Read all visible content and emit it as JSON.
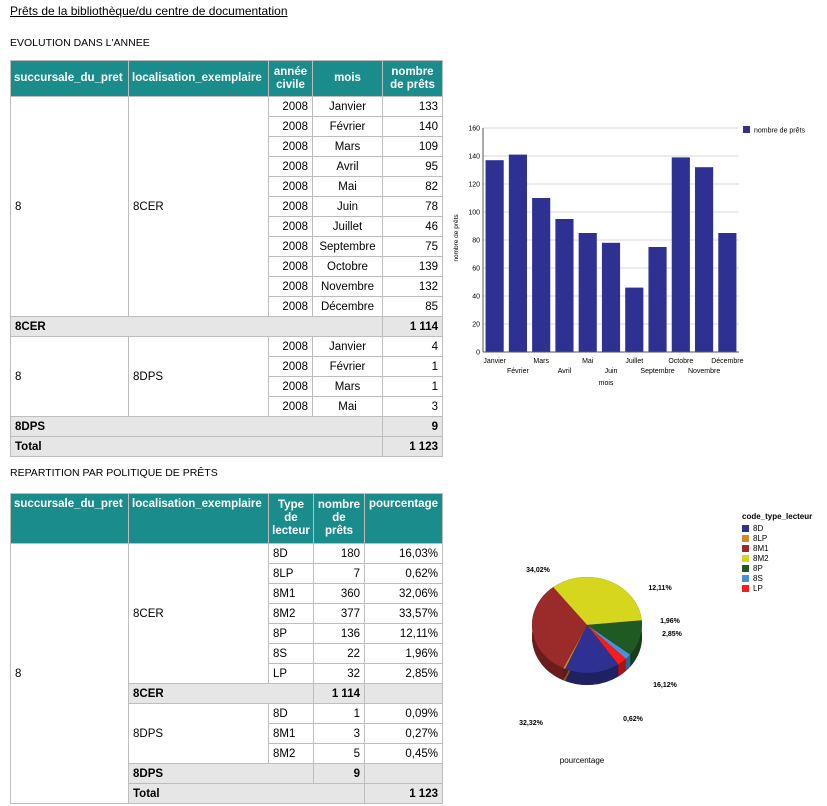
{
  "page_title": "Prêts de la bibliothèque/du centre de documentation",
  "section1": {
    "title": "EVOLUTION DANS L'ANNEE",
    "headers": [
      "succursale_du_pret",
      "localisation_exemplaire",
      "année civile",
      "mois",
      "nombre de prêts"
    ],
    "groups": [
      {
        "succursale": "8",
        "localisation": "8CER",
        "rows": [
          {
            "annee": "2008",
            "mois": "Janvier",
            "nombre": "133"
          },
          {
            "annee": "2008",
            "mois": "Février",
            "nombre": "140"
          },
          {
            "annee": "2008",
            "mois": "Mars",
            "nombre": "109"
          },
          {
            "annee": "2008",
            "mois": "Avril",
            "nombre": "95"
          },
          {
            "annee": "2008",
            "mois": "Mai",
            "nombre": "82"
          },
          {
            "annee": "2008",
            "mois": "Juin",
            "nombre": "78"
          },
          {
            "annee": "2008",
            "mois": "Juillet",
            "nombre": "46"
          },
          {
            "annee": "2008",
            "mois": "Septembre",
            "nombre": "75"
          },
          {
            "annee": "2008",
            "mois": "Octobre",
            "nombre": "139"
          },
          {
            "annee": "2008",
            "mois": "Novembre",
            "nombre": "132"
          },
          {
            "annee": "2008",
            "mois": "Décembre",
            "nombre": "85"
          }
        ],
        "subtotal_label": "8CER",
        "subtotal": "1 114"
      },
      {
        "succursale": "8",
        "localisation": "8DPS",
        "rows": [
          {
            "annee": "2008",
            "mois": "Janvier",
            "nombre": "4"
          },
          {
            "annee": "2008",
            "mois": "Février",
            "nombre": "1"
          },
          {
            "annee": "2008",
            "mois": "Mars",
            "nombre": "1"
          },
          {
            "annee": "2008",
            "mois": "Mai",
            "nombre": "3"
          }
        ],
        "subtotal_label": "8DPS",
        "subtotal": "9"
      }
    ],
    "total_label": "Total",
    "total": "1 123"
  },
  "section2": {
    "title": "REPARTITION PAR POLITIQUE DE PRÊTS",
    "headers": [
      "succursale_du_pret",
      "localisation_exemplaire",
      "Type de lecteur",
      "nombre de prêts",
      "pourcentage"
    ],
    "succursale": "8",
    "groups": [
      {
        "localisation": "8CER",
        "rows": [
          {
            "type": "8D",
            "nombre": "180",
            "pct": "16,03%"
          },
          {
            "type": "8LP",
            "nombre": "7",
            "pct": "0,62%"
          },
          {
            "type": "8M1",
            "nombre": "360",
            "pct": "32,06%"
          },
          {
            "type": "8M2",
            "nombre": "377",
            "pct": "33,57%"
          },
          {
            "type": "8P",
            "nombre": "136",
            "pct": "12,11%"
          },
          {
            "type": "8S",
            "nombre": "22",
            "pct": "1,96%"
          },
          {
            "type": "LP",
            "nombre": "32",
            "pct": "2,85%"
          }
        ],
        "subtotal_label": "8CER",
        "subtotal": "1 114"
      },
      {
        "localisation": "8DPS",
        "rows": [
          {
            "type": "8D",
            "nombre": "1",
            "pct": "0,09%"
          },
          {
            "type": "8M1",
            "nombre": "3",
            "pct": "0,27%"
          },
          {
            "type": "8M2",
            "nombre": "5",
            "pct": "0,45%"
          }
        ],
        "subtotal_label": "8DPS",
        "subtotal": "9"
      }
    ],
    "total_label": "Total",
    "total": "1 123"
  },
  "chart_data": [
    {
      "type": "bar",
      "categories": [
        "Janvier",
        "Février",
        "Mars",
        "Avril",
        "Mai",
        "Juin",
        "Juillet",
        "Septembre",
        "Octobre",
        "Novembre",
        "Décembre"
      ],
      "series": [
        {
          "name": "nombre de prêts",
          "values": [
            137,
            141,
            110,
            95,
            85,
            78,
            46,
            75,
            139,
            132,
            85
          ],
          "color": "#2e3192"
        }
      ],
      "xlabel": "mois",
      "ylabel": "nombre de prêts",
      "ylim": [
        0,
        160
      ],
      "yticks": [
        0,
        20,
        40,
        60,
        80,
        100,
        120,
        140,
        160
      ],
      "grid": true,
      "legend": "right"
    },
    {
      "type": "pie",
      "title": "pourcentage",
      "legend_title": "code_type_lecteur",
      "labels": [
        "8D",
        "8LP",
        "8M1",
        "8M2",
        "8P",
        "8S",
        "LP"
      ],
      "values": [
        16.12,
        0.62,
        32.32,
        34.02,
        12.11,
        1.96,
        2.85
      ],
      "value_labels": [
        "16,12%",
        "0,62%",
        "32,32%",
        "34,02%",
        "12,11%",
        "1,96%",
        "2,85%"
      ],
      "colors": [
        "#2e3192",
        "#d08a2a",
        "#9b2a2a",
        "#d6d61e",
        "#1f5a22",
        "#4a90d9",
        "#ff1a1a"
      ],
      "legend": "right"
    }
  ]
}
